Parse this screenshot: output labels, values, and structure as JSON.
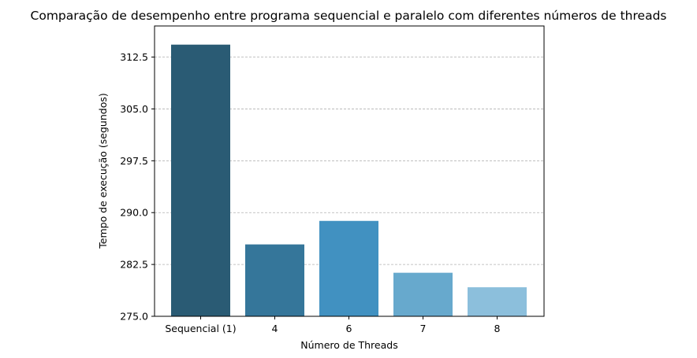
{
  "chart_data": {
    "type": "bar",
    "title": "Comparação de desempenho entre programa sequencial e paralelo com diferentes números de threads",
    "xlabel": "Número de Threads",
    "ylabel": "Tempo de execução (segundos)",
    "categories": [
      "Sequencial (1)",
      "4",
      "6",
      "7",
      "8"
    ],
    "values": [
      314.3,
      285.4,
      288.8,
      281.3,
      279.2
    ],
    "colors": [
      "#2a5b74",
      "#35769a",
      "#4191c1",
      "#67a9cd",
      "#8cbfdc"
    ],
    "ylim": [
      275.0,
      317.0
    ],
    "yticks": [
      275.0,
      282.5,
      290.0,
      297.5,
      305.0,
      312.5
    ],
    "ytick_labels": [
      "275.0",
      "282.5",
      "290.0",
      "297.5",
      "305.0",
      "312.5"
    ],
    "grid": {
      "axis": "y",
      "style": "dashed",
      "color": "#b0b0b0"
    }
  }
}
